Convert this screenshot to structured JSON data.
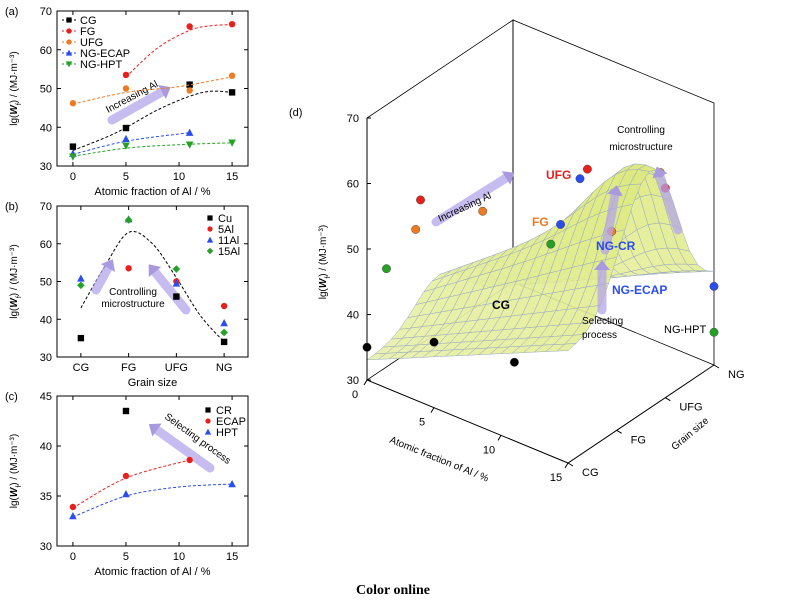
{
  "caption": "Color online",
  "chart_data": [
    {
      "panel": "(a)",
      "type": "scatter",
      "xlabel": "Atomic fraction of Al / %",
      "ylabel_prefix": "lg(",
      "ylabel_var": "W",
      "ylabel_sub": "f",
      "ylabel_suffix": ") / (MJ·m⁻³)",
      "xlim": [
        -1.5,
        16.5
      ],
      "ylim": [
        30,
        70
      ],
      "xticks": [
        "0",
        "5",
        "10",
        "15"
      ],
      "yticks": [
        "30",
        "40",
        "50",
        "60",
        "70"
      ],
      "annotations": [
        "Increasing Al"
      ],
      "legend_position": "top-left",
      "series": [
        {
          "name": "CG",
          "color": "#000000",
          "marker": "square",
          "x": [
            0,
            5,
            11,
            15
          ],
          "y": [
            35,
            39.8,
            51,
            49
          ],
          "fit": [
            [
              0,
              34
            ],
            [
              4,
              38.5
            ],
            [
              8,
              44.5
            ],
            [
              11,
              48
            ],
            [
              13,
              49.3
            ],
            [
              15,
              49
            ]
          ]
        },
        {
          "name": "FG",
          "color": "#e8201c",
          "marker": "circle",
          "x": [
            5,
            11,
            15
          ],
          "y": [
            53.5,
            66,
            66.6
          ],
          "fit": [
            [
              5,
              53
            ],
            [
              8,
              60.5
            ],
            [
              11,
              65
            ],
            [
              13,
              66.2
            ],
            [
              15,
              66.5
            ]
          ]
        },
        {
          "name": "UFG",
          "color": "#f07a21",
          "marker": "circle",
          "x": [
            0,
            5,
            11,
            15
          ],
          "y": [
            46.2,
            50,
            49.5,
            53.3
          ],
          "fit": [
            [
              0,
              46
            ],
            [
              5,
              49
            ],
            [
              10,
              50.5
            ],
            [
              15,
              53
            ]
          ]
        },
        {
          "name": "NG-ECAP",
          "color": "#2a4df0",
          "marker": "triangle",
          "x": [
            0,
            5,
            11
          ],
          "y": [
            33.2,
            37,
            38.6
          ],
          "fit": [
            [
              0,
              33
            ],
            [
              5,
              36.4
            ],
            [
              11,
              38.6
            ]
          ]
        },
        {
          "name": "NG-HPT",
          "color": "#25a125",
          "marker": "triangle-down",
          "x": [
            0,
            5,
            11,
            15
          ],
          "y": [
            32.4,
            35.2,
            35.5,
            36
          ],
          "fit": [
            [
              0,
              32.5
            ],
            [
              5,
              34.6
            ],
            [
              10,
              35.5
            ],
            [
              15,
              36
            ]
          ]
        }
      ]
    },
    {
      "panel": "(b)",
      "type": "scatter",
      "xlabel": "Grain size",
      "ylabel_prefix": "lg(",
      "ylabel_var": "W",
      "ylabel_sub": "f",
      "ylabel_suffix": ") / (MJ·m⁻³)",
      "categories": [
        "CG",
        "FG",
        "UFG",
        "NG"
      ],
      "ylim": [
        30,
        70
      ],
      "yticks": [
        "30",
        "40",
        "50",
        "60",
        "70"
      ],
      "annotations": [
        "Controlling",
        "microstructure"
      ],
      "legend_position": "right",
      "fit": [
        [
          0,
          43
        ],
        [
          0.5,
          54
        ],
        [
          1,
          63
        ],
        [
          1.5,
          60
        ],
        [
          2,
          51
        ],
        [
          2.5,
          41
        ],
        [
          3,
          34
        ]
      ],
      "series": [
        {
          "name": "Cu",
          "color": "#000000",
          "marker": "square",
          "values": [
            35,
            null,
            46,
            34
          ]
        },
        {
          "name": "5Al",
          "color": "#e8201c",
          "marker": "circle",
          "values": [
            null,
            53.5,
            50,
            43.5
          ]
        },
        {
          "name": "11Al",
          "color": "#2a4df0",
          "marker": "triangle",
          "values": [
            50.8,
            66.5,
            49.5,
            39
          ]
        },
        {
          "name": "15Al",
          "color": "#25a125",
          "marker": "diamond",
          "values": [
            49,
            66.3,
            53.3,
            36.5
          ]
        }
      ]
    },
    {
      "panel": "(c)",
      "type": "scatter",
      "xlabel": "Atomic fraction of Al / %",
      "ylabel_prefix": "lg(",
      "ylabel_var": "W",
      "ylabel_sub": "f",
      "ylabel_suffix": ") / (MJ·m⁻³)",
      "xlim": [
        -1.5,
        16.5
      ],
      "ylim": [
        30,
        45
      ],
      "xticks": [
        "0",
        "5",
        "10",
        "15"
      ],
      "yticks": [
        "30",
        "35",
        "40",
        "45"
      ],
      "annotations": [
        "Selecting process"
      ],
      "legend_position": "top-right",
      "series": [
        {
          "name": "CR",
          "color": "#000000",
          "marker": "square",
          "x": [
            5
          ],
          "y": [
            43.5
          ],
          "fit": []
        },
        {
          "name": "ECAP",
          "color": "#e8201c",
          "marker": "circle",
          "x": [
            0,
            5,
            11
          ],
          "y": [
            33.9,
            37,
            38.6
          ],
          "fit": [
            [
              0,
              33.8
            ],
            [
              5,
              36.8
            ],
            [
              11,
              38.6
            ]
          ]
        },
        {
          "name": "HPT",
          "color": "#2a4df0",
          "marker": "triangle",
          "x": [
            0,
            5,
            15
          ],
          "y": [
            33,
            35.2,
            36.2
          ],
          "fit": [
            [
              0,
              32.9
            ],
            [
              5,
              35
            ],
            [
              10,
              35.9
            ],
            [
              15,
              36.2
            ]
          ]
        }
      ]
    },
    {
      "panel": "(d)",
      "type": "surface",
      "xlabel": "Atomic fraction of Al / %",
      "ylabel": "Grain size",
      "zlabel_prefix": "lg(",
      "zlabel_var": "W",
      "zlabel_sub": "f",
      "zlabel_suffix": ") / (MJ·m⁻³)",
      "xticks": [
        "0",
        "5",
        "10",
        "15"
      ],
      "yticks": [
        "CG",
        "FG",
        "UFG",
        "NG"
      ],
      "zticks": [
        "30",
        "40",
        "50",
        "60",
        "70"
      ],
      "annotations": [
        "Increasing Al",
        "Controlling",
        "microstructure",
        "Selecting",
        "process"
      ],
      "labels": [
        "UFG",
        "FG",
        "NG-CR",
        "NG-ECAP",
        "CG",
        "NG-HPT"
      ]
    }
  ]
}
